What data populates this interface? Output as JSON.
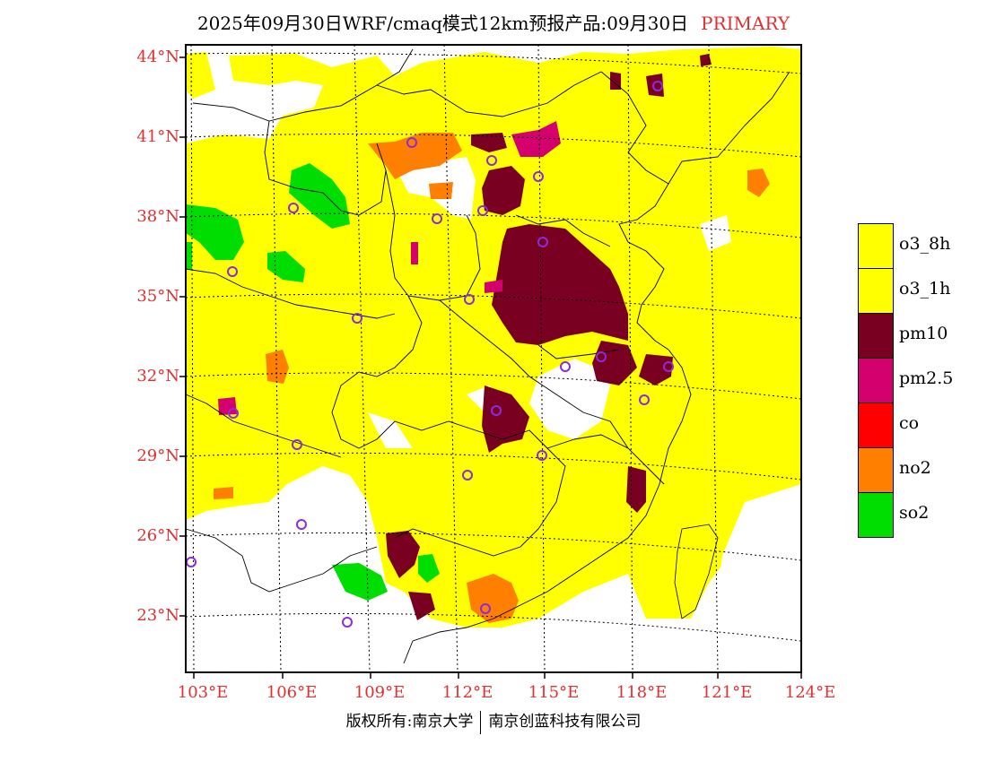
{
  "title": {
    "text": "2025年09月30日WRF/cmaq模式12km预报产品:09月30日",
    "tag": "PRIMARY"
  },
  "map": {
    "lat_ticks": [
      "44°N",
      "41°N",
      "38°N",
      "35°N",
      "32°N",
      "29°N",
      "26°N",
      "23°N"
    ],
    "lon_ticks": [
      "103°E",
      "106°E",
      "109°E",
      "112°E",
      "115°E",
      "118°E",
      "121°E",
      "124°E"
    ]
  },
  "legend": {
    "items": [
      {
        "label": "o3_8h",
        "color": "#ffff00"
      },
      {
        "label": "o3_1h",
        "color": "#ffff00"
      },
      {
        "label": "pm10",
        "color": "#7a0022"
      },
      {
        "label": "pm2.5",
        "color": "#d4006e"
      },
      {
        "label": "co",
        "color": "#ff0000"
      },
      {
        "label": "no2",
        "color": "#ff7f00"
      },
      {
        "label": "so2",
        "color": "#00dd00"
      }
    ]
  },
  "footer": {
    "copyright": "版权所有:南京大学",
    "company": "南京创蓝科技有限公司"
  },
  "colors": {
    "label_red": "#e03030",
    "o3": "#ffff00",
    "pm10": "#7a0022",
    "pm25": "#d4006e",
    "no2": "#ff7f00",
    "so2": "#00dd00",
    "site": "#8a2be2"
  }
}
